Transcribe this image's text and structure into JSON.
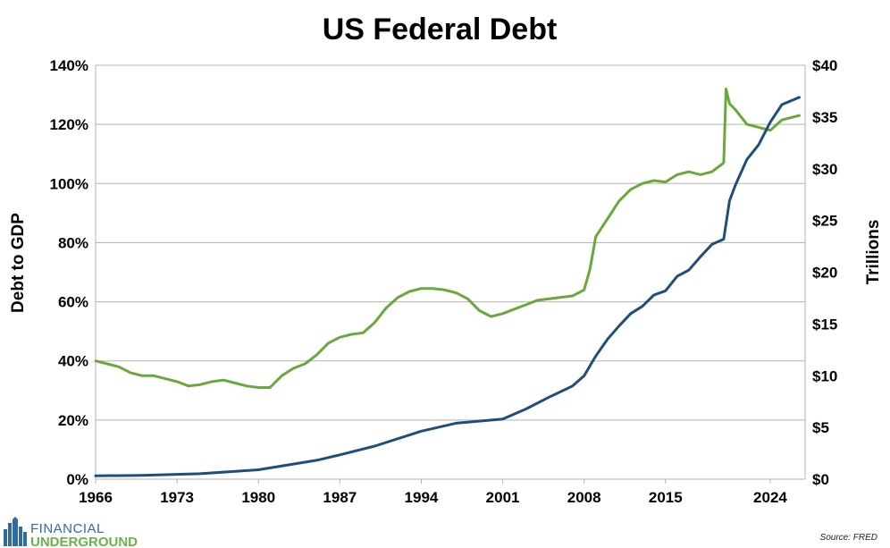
{
  "chart_data": {
    "type": "line",
    "title": "US Federal Debt",
    "ylabel": "Debt to GDP",
    "y2label": "Trillions",
    "source": "Source: FRED",
    "ylim": [
      0,
      140
    ],
    "y2lim": [
      0,
      40
    ],
    "xlim": [
      1966,
      2027
    ],
    "xticks": [
      "1966",
      "1973",
      "1980",
      "1987",
      "1994",
      "2001",
      "2008",
      "2015",
      "2024"
    ],
    "yticks": [
      "0%",
      "20%",
      "40%",
      "60%",
      "80%",
      "100%",
      "120%",
      "140%"
    ],
    "y2ticks": [
      "$0",
      "$5",
      "$10",
      "$15",
      "$20",
      "$25",
      "$30",
      "$35",
      "$40"
    ],
    "colors": {
      "debt_to_gdp": "#6aa83c",
      "debt_trillions": "#1f4e79",
      "grid": "#b3b3b3"
    },
    "series": [
      {
        "name": "Debt to GDP",
        "axis": "left",
        "x": [
          1966,
          1967,
          1968,
          1969,
          1970,
          1971,
          1972,
          1973,
          1974,
          1975,
          1976,
          1977,
          1978,
          1979,
          1980,
          1981,
          1982,
          1983,
          1984,
          1985,
          1986,
          1987,
          1988,
          1989,
          1990,
          1991,
          1992,
          1993,
          1994,
          1995,
          1996,
          1997,
          1998,
          1999,
          2000,
          2001,
          2002,
          2003,
          2004,
          2005,
          2006,
          2007,
          2008,
          2008.5,
          2009,
          2010,
          2011,
          2012,
          2013,
          2014,
          2015,
          2016,
          2017,
          2018,
          2019,
          2020,
          2020.2,
          2020.5,
          2021,
          2022,
          2023,
          2024,
          2025,
          2026.5
        ],
        "values": [
          40,
          39,
          38,
          36,
          35,
          35,
          34,
          33,
          31.5,
          32,
          33,
          33.5,
          32.5,
          31.5,
          31,
          31,
          35,
          37.5,
          39,
          42,
          46,
          48,
          49,
          49.5,
          53,
          58,
          61.5,
          63.5,
          64.5,
          64.5,
          64,
          63,
          61,
          57,
          55,
          56,
          57.5,
          59,
          60.5,
          61,
          61.5,
          62,
          64,
          71,
          82,
          88,
          94,
          98,
          100,
          101,
          100.5,
          103,
          104,
          103,
          104,
          107,
          132,
          127,
          125,
          120,
          119,
          118,
          121.5,
          123
        ]
      },
      {
        "name": "Debt (Trillions)",
        "axis": "right",
        "x": [
          1966,
          1970,
          1975,
          1980,
          1985,
          1987,
          1990,
          1994,
          1997,
          2001,
          2003,
          2005,
          2007,
          2008,
          2009,
          2010,
          2011,
          2012,
          2013,
          2014,
          2015,
          2016,
          2017,
          2018,
          2019,
          2020,
          2020.5,
          2021,
          2022,
          2023,
          2024,
          2025,
          2026.5
        ],
        "values": [
          0.32,
          0.37,
          0.53,
          0.91,
          1.82,
          2.35,
          3.2,
          4.64,
          5.41,
          5.81,
          6.78,
          7.93,
          9.0,
          9.99,
          11.9,
          13.5,
          14.8,
          16.0,
          16.7,
          17.8,
          18.2,
          19.6,
          20.2,
          21.5,
          22.7,
          23.2,
          26.9,
          28.4,
          30.9,
          32.3,
          34.5,
          36.2,
          36.9
        ]
      }
    ]
  },
  "logo": {
    "top": "FINANCIAL",
    "bottom": "UNDERGROUND"
  }
}
